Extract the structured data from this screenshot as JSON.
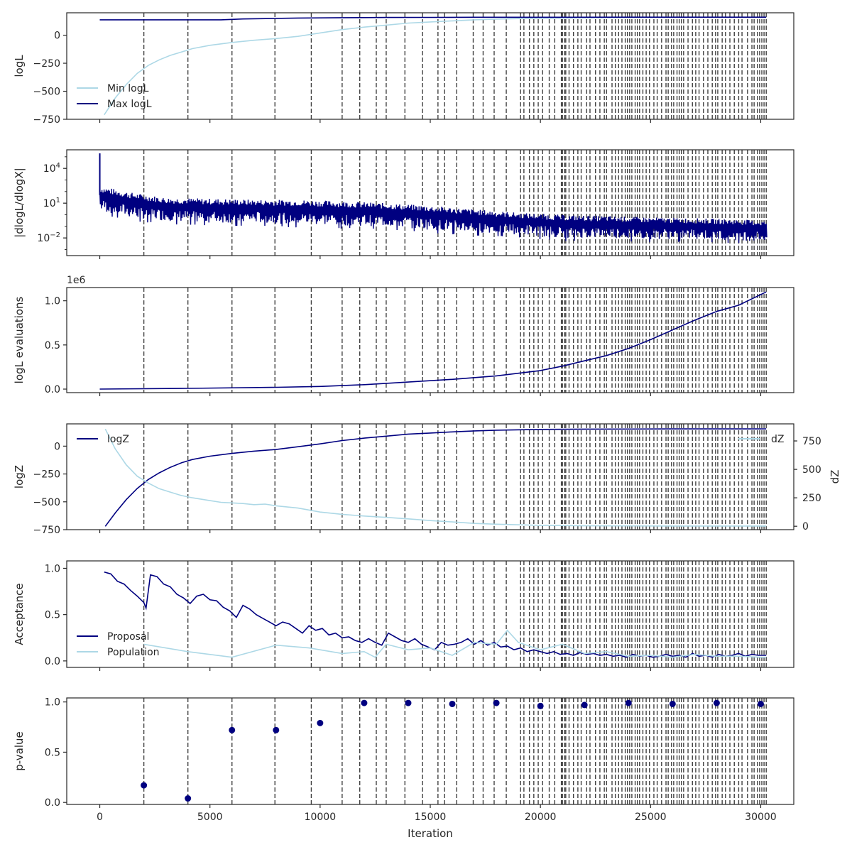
{
  "chart_data": [
    {
      "type": "line",
      "ylabel": "logL",
      "xlim": [
        -1500,
        31500
      ],
      "ylim": [
        -750,
        200
      ],
      "yticks": [
        0,
        -250,
        -500,
        -750
      ],
      "ytick_labels": [
        "0",
        "−250",
        "−500",
        "−750"
      ],
      "legend": "lower-left",
      "series": [
        {
          "name": "Min logL",
          "color": "#add8e6",
          "x": [
            200,
            700,
            1200,
            1700,
            2200,
            2700,
            3200,
            3700,
            4200,
            5000,
            6000,
            7000,
            8000,
            9000,
            10000,
            11000,
            12000,
            13000,
            14000,
            15000,
            16000,
            17000,
            18000,
            19000,
            20000,
            21000,
            22000,
            24000,
            26000,
            28000,
            30250
          ],
          "y": [
            -710,
            -560,
            -440,
            -340,
            -270,
            -220,
            -180,
            -150,
            -120,
            -90,
            -65,
            -45,
            -30,
            -10,
            20,
            50,
            72,
            90,
            108,
            118,
            128,
            137,
            143,
            148,
            151,
            153,
            155,
            157,
            158,
            159,
            160
          ]
        },
        {
          "name": "Max logL",
          "color": "#000080",
          "x": [
            0,
            5500,
            6500,
            8000,
            9000,
            11000,
            13000,
            15000,
            17000,
            21000,
            24000,
            30250
          ],
          "y": [
            137,
            137,
            145,
            150,
            153,
            156,
            158,
            159,
            160,
            160,
            161,
            161
          ]
        }
      ]
    },
    {
      "type": "line",
      "ylabel": "|dlogL/dlogX|",
      "yscale": "log",
      "xlim": [
        -1500,
        31500
      ],
      "ylim": [
        0.0003,
        400000
      ],
      "yticks": [
        10000,
        10,
        0.01
      ],
      "ytick_labels": [
        {
          "base": "10",
          "exp": "4"
        },
        {
          "base": "10",
          "exp": "1"
        },
        {
          "base": "10",
          "exp": "−2"
        }
      ],
      "series": [
        {
          "name": "",
          "color": "#000080",
          "x": [
            0,
            1500,
            3000,
            5000,
            7000,
            9000,
            11000,
            13000,
            15000,
            17000,
            19000,
            21000,
            23000,
            25000,
            27000,
            29000,
            30250
          ],
          "y_upper": [
            300,
            80,
            30,
            25,
            20,
            20,
            15,
            10,
            6,
            3,
            1.5,
            1,
            0.8,
            0.6,
            0.5,
            0.4,
            0.3
          ],
          "y_lower": [
            2,
            0.5,
            0.3,
            0.2,
            0.2,
            0.15,
            0.12,
            0.1,
            0.05,
            0.03,
            0.02,
            0.01,
            0.01,
            0.008,
            0.008,
            0.006,
            0.005
          ]
        }
      ]
    },
    {
      "type": "line",
      "ylabel": "logL evaluations",
      "offset_label": "1e6",
      "xlim": [
        -1500,
        31500
      ],
      "ylim": [
        -0.04,
        1.15
      ],
      "yticks": [
        0,
        0.5,
        1
      ],
      "ytick_labels": [
        "0.0",
        "0.5",
        "1.0"
      ],
      "series": [
        {
          "name": "",
          "color": "#000080",
          "x": [
            0,
            4000,
            8000,
            10000,
            12000,
            14000,
            16000,
            18000,
            20000,
            21000,
            22000,
            23000,
            24000,
            25000,
            26000,
            27000,
            28000,
            29000,
            30250
          ],
          "y": [
            0,
            0.008,
            0.02,
            0.03,
            0.05,
            0.08,
            0.11,
            0.15,
            0.21,
            0.26,
            0.32,
            0.38,
            0.46,
            0.56,
            0.67,
            0.78,
            0.88,
            0.95,
            1.1
          ]
        }
      ]
    },
    {
      "type": "line",
      "ylabel": "logZ",
      "y2label": "dZ",
      "xlim": [
        -1500,
        31500
      ],
      "ylim": [
        -750,
        200
      ],
      "y2lim": [
        -30,
        900
      ],
      "yticks": [
        0,
        -250,
        -500,
        -750
      ],
      "ytick_labels": [
        "0",
        "−250",
        "−500",
        "−750"
      ],
      "y2ticks": [
        750,
        500,
        250,
        0
      ],
      "y2tick_labels": [
        "750",
        "500",
        "250",
        "0"
      ],
      "series": [
        {
          "name": "logZ",
          "color": "#000080",
          "axis": "left",
          "x": [
            250,
            700,
            1200,
            1700,
            2200,
            2700,
            3200,
            3700,
            4200,
            5000,
            6000,
            7000,
            8000,
            9000,
            10000,
            11000,
            12000,
            13000,
            14000,
            15000,
            16000,
            17000,
            18000,
            20000,
            22000,
            26000,
            30250
          ],
          "y": [
            -720,
            -600,
            -480,
            -380,
            -300,
            -240,
            -190,
            -150,
            -120,
            -90,
            -65,
            -45,
            -30,
            -5,
            20,
            50,
            72,
            90,
            108,
            118,
            128,
            137,
            143,
            150,
            153,
            155,
            155
          ]
        },
        {
          "name": "dZ",
          "color": "#add8e6",
          "axis": "right",
          "x": [
            250,
            700,
            1200,
            1700,
            2200,
            2700,
            3200,
            3700,
            4200,
            5000,
            5500,
            6000,
            6500,
            7000,
            7500,
            8000,
            9000,
            10000,
            11000,
            12000,
            13000,
            14000,
            15000,
            16000,
            17000,
            18000,
            20000,
            22000,
            26000,
            30250
          ],
          "y": [
            855,
            680,
            540,
            440,
            380,
            330,
            300,
            270,
            250,
            225,
            210,
            205,
            200,
            190,
            195,
            180,
            160,
            125,
            105,
            90,
            78,
            65,
            50,
            38,
            25,
            18,
            8,
            4,
            2,
            2
          ]
        }
      ]
    },
    {
      "type": "line",
      "ylabel": "Acceptance",
      "xlim": [
        -1500,
        31500
      ],
      "ylim": [
        -0.07,
        1.08
      ],
      "yticks": [
        0,
        0.5,
        1
      ],
      "ytick_labels": [
        "0.0",
        "0.5",
        "1.0"
      ],
      "legend": "lower-left",
      "series": [
        {
          "name": "Proposal",
          "color": "#000080",
          "x": [
            200,
            500,
            800,
            1100,
            1400,
            1700,
            2000,
            2100,
            2300,
            2600,
            2900,
            3200,
            3500,
            3800,
            4100,
            4400,
            4700,
            5000,
            5300,
            5600,
            5900,
            6200,
            6500,
            6800,
            7100,
            7400,
            7700,
            8000,
            8300,
            8600,
            8900,
            9200,
            9500,
            9800,
            10100,
            10400,
            10700,
            11000,
            11300,
            11600,
            11900,
            12200,
            12500,
            12800,
            13100,
            13400,
            13700,
            14000,
            14300,
            14600,
            14900,
            15200,
            15500,
            15800,
            16100,
            16400,
            16700,
            17000,
            17300,
            17600,
            17900,
            18200,
            18500,
            18800,
            19100,
            19400,
            19700,
            20000,
            20300,
            20600,
            20900,
            21200,
            21500,
            21800,
            22100,
            22400,
            22700,
            23000,
            23300,
            23600,
            23900,
            24200,
            24500,
            24800,
            25100,
            25400,
            25700,
            26000,
            26300,
            26600,
            26900,
            27200,
            27500,
            27800,
            28100,
            28400,
            28700,
            29000,
            29300,
            29600,
            29900,
            30250
          ],
          "y": [
            0.96,
            0.94,
            0.86,
            0.83,
            0.76,
            0.7,
            0.63,
            0.57,
            0.93,
            0.91,
            0.83,
            0.8,
            0.72,
            0.68,
            0.62,
            0.7,
            0.72,
            0.66,
            0.65,
            0.58,
            0.54,
            0.47,
            0.6,
            0.56,
            0.5,
            0.46,
            0.42,
            0.38,
            0.42,
            0.4,
            0.35,
            0.3,
            0.38,
            0.33,
            0.35,
            0.28,
            0.3,
            0.25,
            0.26,
            0.22,
            0.2,
            0.24,
            0.2,
            0.17,
            0.3,
            0.26,
            0.22,
            0.2,
            0.24,
            0.18,
            0.15,
            0.12,
            0.2,
            0.17,
            0.18,
            0.2,
            0.24,
            0.18,
            0.22,
            0.17,
            0.2,
            0.15,
            0.16,
            0.12,
            0.14,
            0.1,
            0.12,
            0.1,
            0.08,
            0.1,
            0.07,
            0.08,
            0.06,
            0.09,
            0.07,
            0.08,
            0.06,
            0.07,
            0.05,
            0.06,
            0.04,
            0.07,
            0.05,
            0.06,
            0.04,
            0.05,
            0.07,
            0.05,
            0.06,
            0.04,
            0.08,
            0.05,
            0.06,
            0.04,
            0.07,
            0.05,
            0.06,
            0.08,
            0.05,
            0.07,
            0.06,
            0.06
          ]
        },
        {
          "name": "Population",
          "color": "#add8e6",
          "x": [
            2000,
            4000,
            6000,
            8000,
            9500,
            11000,
            12000,
            12500,
            13000,
            14000,
            15000,
            16000,
            17000,
            18000,
            18500,
            19000,
            20000,
            21000,
            22000,
            23000,
            24000,
            25000,
            26000,
            27000,
            28000,
            29000,
            30000,
            30250
          ],
          "y": [
            0.18,
            0.1,
            0.04,
            0.17,
            0.14,
            0.08,
            0.1,
            0.04,
            0.18,
            0.12,
            0.14,
            0.06,
            0.2,
            0.18,
            0.33,
            0.2,
            0.12,
            0.18,
            0.08,
            0.1,
            0.05,
            0.06,
            0.04,
            0.07,
            0.05,
            0.05,
            0.04,
            0.04
          ]
        }
      ]
    },
    {
      "type": "scatter",
      "ylabel": "p-value",
      "xlabel": "Iteration",
      "xlim": [
        -1500,
        31500
      ],
      "ylim": [
        -0.02,
        1.04
      ],
      "yticks": [
        0,
        0.5,
        1
      ],
      "ytick_labels": [
        "0.0",
        "0.5",
        "1.0"
      ],
      "xticks": [
        0,
        5000,
        10000,
        15000,
        20000,
        25000,
        30000
      ],
      "xtick_labels": [
        "0",
        "5000",
        "10000",
        "15000",
        "20000",
        "25000",
        "30000"
      ],
      "series": [
        {
          "name": "",
          "color": "#000080",
          "x": [
            2000,
            4000,
            6000,
            8000,
            10000,
            12000,
            14000,
            16000,
            18000,
            20000,
            22000,
            24000,
            26000,
            28000,
            30000
          ],
          "y": [
            0.17,
            0.04,
            0.72,
            0.72,
            0.79,
            0.99,
            0.99,
            0.98,
            0.99,
            0.96,
            0.97,
            0.99,
            0.98,
            0.99,
            0.98
          ]
        }
      ]
    }
  ],
  "insertion_lines": [
    2000,
    4000,
    6000,
    7950,
    9600,
    11000,
    11800,
    12550,
    13000,
    13850,
    14650,
    15350,
    15650,
    16200,
    16950,
    17400,
    17900,
    18450,
    19100,
    19250,
    19500,
    19700,
    19900,
    20100,
    20400,
    20650,
    20950,
    21000,
    21100,
    21150,
    21300,
    21500,
    21700,
    21850,
    22100,
    22250,
    22500,
    22700,
    22900,
    23000,
    23250,
    23400,
    23550,
    23700,
    23850,
    23950,
    24050,
    24150,
    24300,
    24400,
    24500,
    24650,
    24800,
    24950,
    25150,
    25300,
    25500,
    25700,
    25800,
    25950,
    26050,
    26200,
    26300,
    26400,
    26500,
    26700,
    26900,
    27050,
    27200,
    27400,
    27600,
    27800,
    27950,
    28050,
    28250,
    28400,
    28600,
    28800,
    29000,
    29150,
    29400,
    29600,
    29700,
    29850,
    29950,
    30050,
    30150,
    30250
  ]
}
